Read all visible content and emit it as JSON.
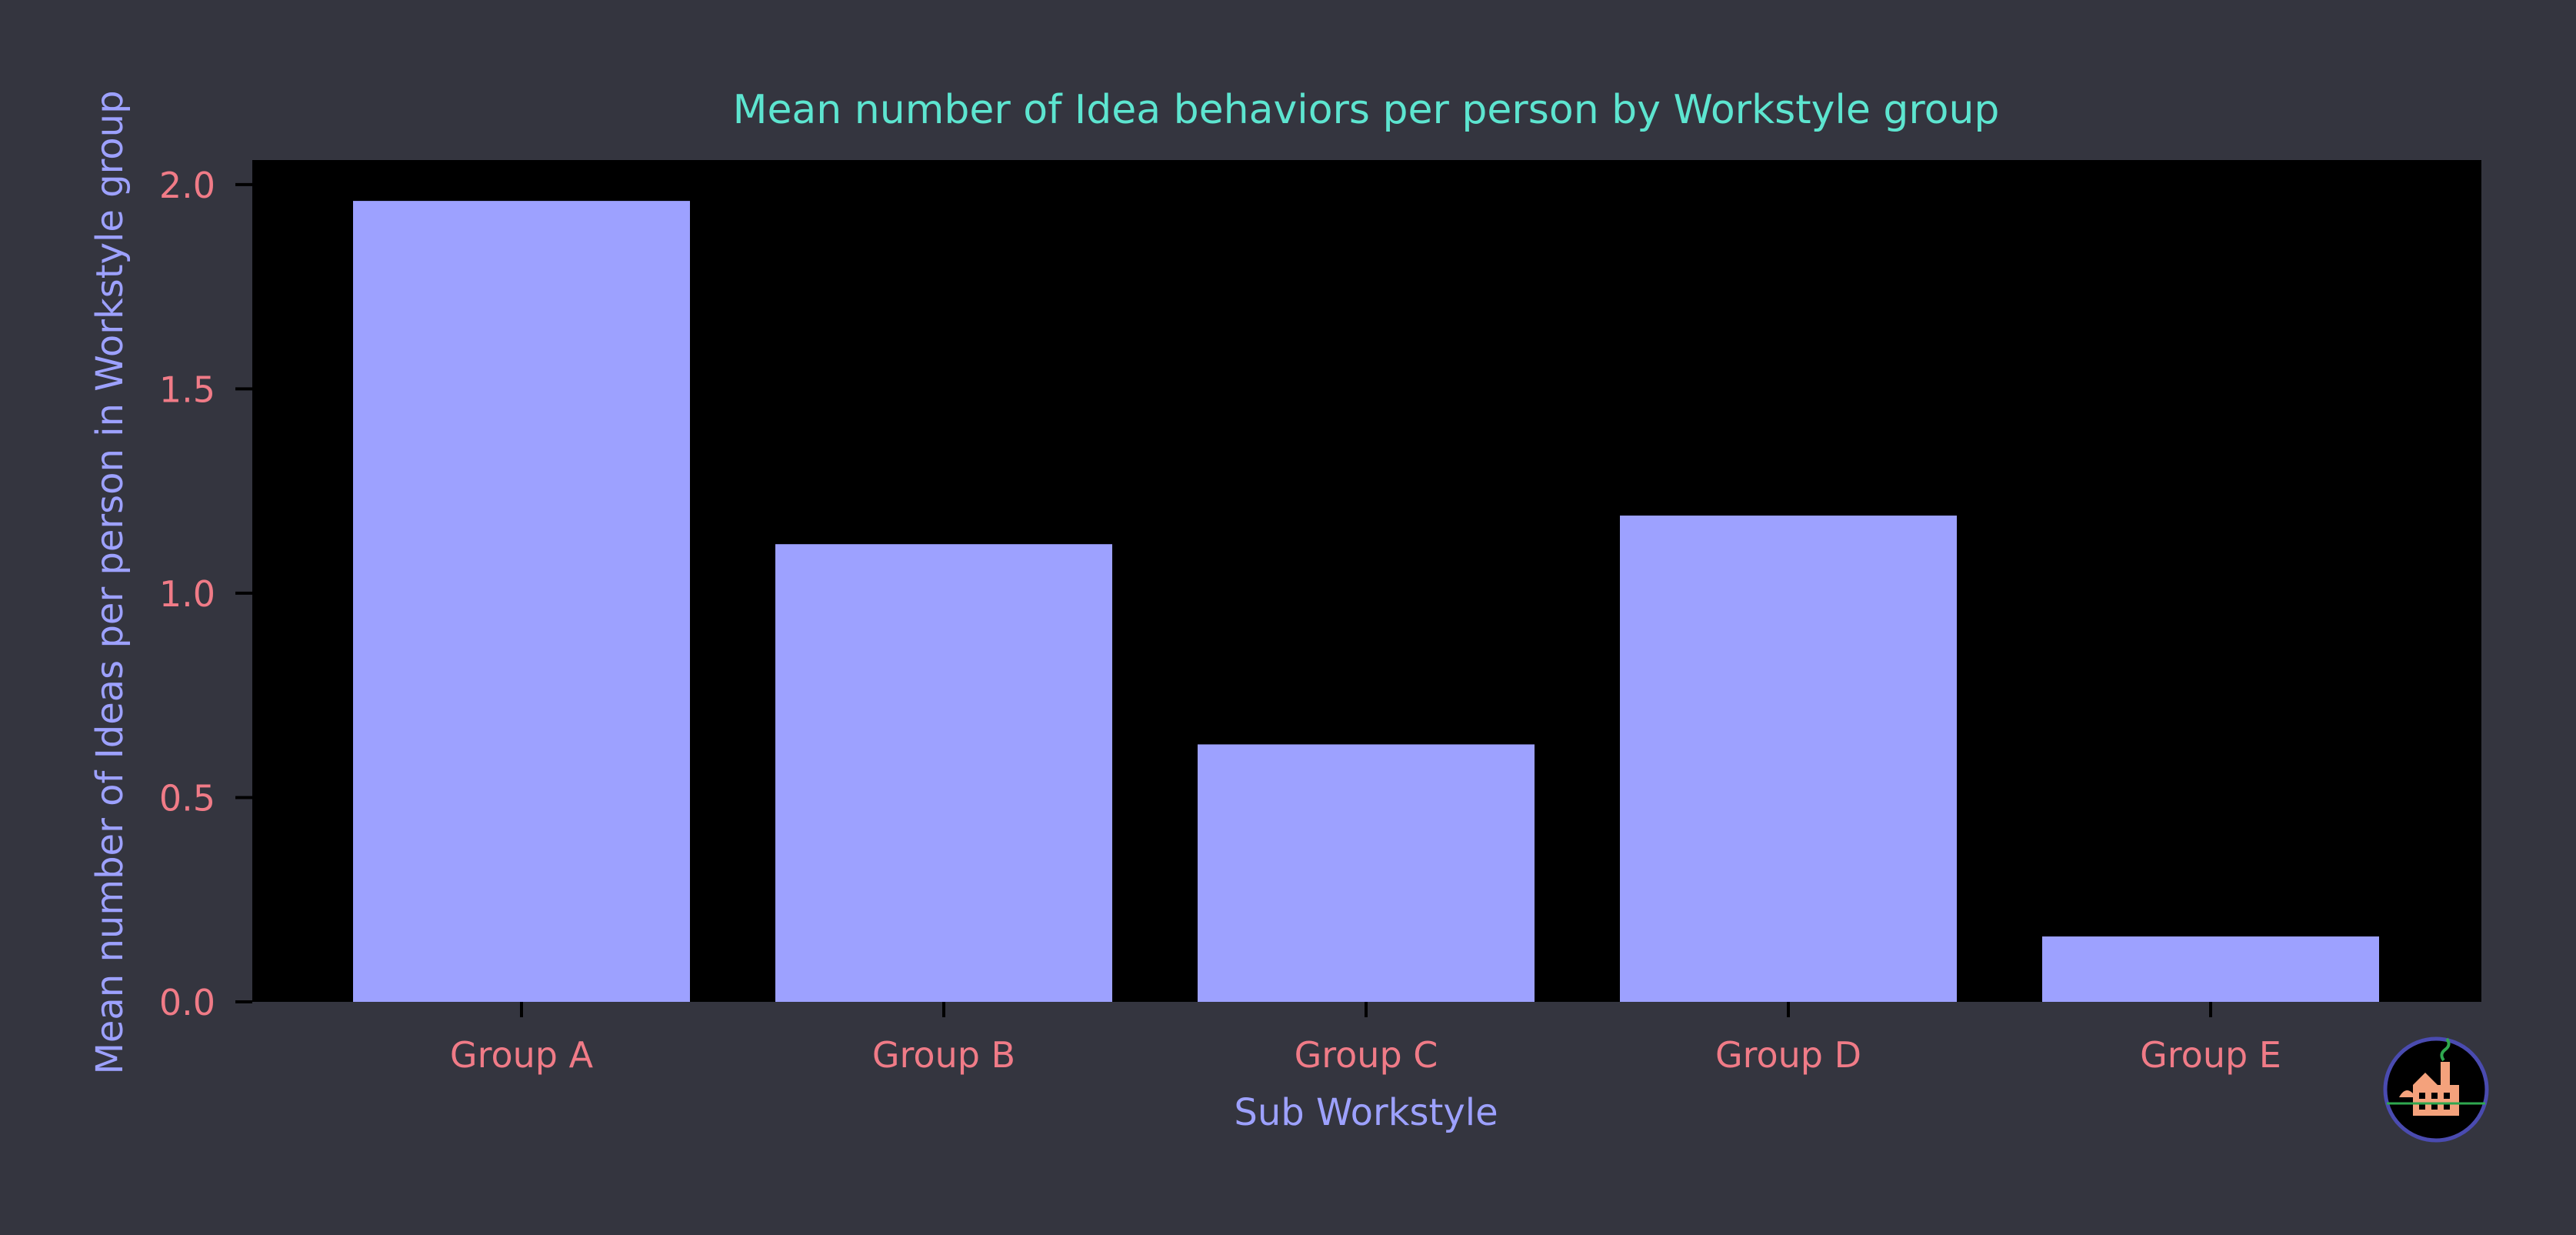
{
  "colors": {
    "figure_background": "#34353f",
    "plot_background": "#000000",
    "bar_fill": "#9da1ff",
    "title_color": "#5de5d0",
    "axis_label_color": "#9da1ff",
    "tick_label_color": "#f07b87",
    "tick_color": "#000000",
    "logo_ring": "#4a4bb0"
  },
  "logo_icon": "factory-logo-icon",
  "chart_data": {
    "type": "bar",
    "title": "Mean number of Idea behaviors per person by Workstyle group",
    "xlabel": "Sub Workstyle",
    "ylabel": "Mean number of Ideas per person in Workstyle group",
    "categories": [
      "Group A",
      "Group B",
      "Group C",
      "Group D",
      "Group E"
    ],
    "values": [
      1.96,
      1.12,
      0.63,
      1.19,
      0.16
    ],
    "ylim": [
      0,
      2.06
    ],
    "yticks": [
      "0.0",
      "0.5",
      "1.0",
      "1.5",
      "2.0"
    ],
    "grid": false,
    "legend": "none"
  }
}
